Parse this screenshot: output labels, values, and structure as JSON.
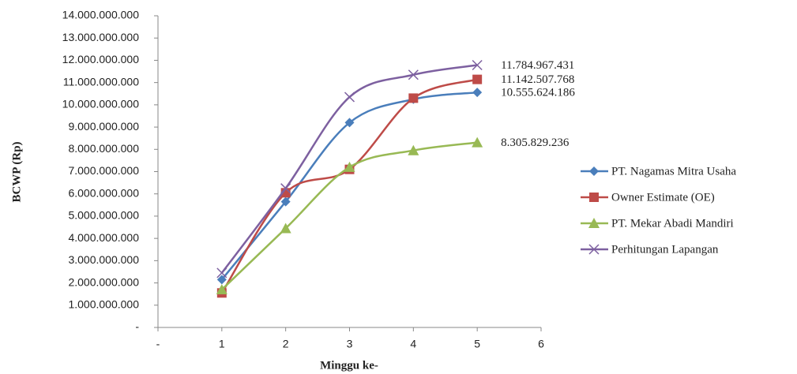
{
  "chart_data": {
    "type": "line",
    "x_label": "Minggu ke-",
    "y_label": "BCWP (Rp)",
    "x": [
      1,
      2,
      3,
      4,
      5
    ],
    "xlim": [
      0,
      6
    ],
    "xticks": [
      {
        "value": 0,
        "label": "-"
      },
      1,
      2,
      3,
      4,
      5,
      6
    ],
    "ylim": [
      0,
      14000000000
    ],
    "yticks": [
      {
        "value": 0,
        "label": "-"
      },
      {
        "value": 1000000000,
        "label": "1.000.000.000"
      },
      {
        "value": 2000000000,
        "label": "2.000.000.000"
      },
      {
        "value": 3000000000,
        "label": "3.000.000.000"
      },
      {
        "value": 4000000000,
        "label": "4.000.000.000"
      },
      {
        "value": 5000000000,
        "label": "5.000.000.000"
      },
      {
        "value": 6000000000,
        "label": "6.000.000.000"
      },
      {
        "value": 7000000000,
        "label": "7.000.000.000"
      },
      {
        "value": 8000000000,
        "label": "8.000.000.000"
      },
      {
        "value": 9000000000,
        "label": "9.000.000.000"
      },
      {
        "value": 10000000000,
        "label": "10.000.000.000"
      },
      {
        "value": 11000000000,
        "label": "11.000.000.000"
      },
      {
        "value": 12000000000,
        "label": "12.000.000.000"
      },
      {
        "value": 13000000000,
        "label": "13.000.000.000"
      },
      {
        "value": 14000000000,
        "label": "14.000.000.000"
      }
    ],
    "legend_position": "right",
    "series": [
      {
        "name": "PT. Nagamas Mitra Usaha",
        "color": "#4a7ebb",
        "marker": "diamond",
        "values": [
          2150000000,
          5650000000,
          9200000000,
          10250000000,
          10555624186
        ],
        "value_labels": [
          null,
          null,
          null,
          null,
          "10.555.624.186"
        ]
      },
      {
        "name": "Owner Estimate (OE)",
        "color": "#be4b48",
        "marker": "square",
        "values": [
          1550000000,
          6050000000,
          7100000000,
          10300000000,
          11142507768
        ],
        "value_labels": [
          null,
          null,
          null,
          null,
          "11.142.507.768"
        ]
      },
      {
        "name": "PT. Mekar Abadi Mandiri",
        "color": "#98b954",
        "marker": "triangle",
        "values": [
          1700000000,
          4450000000,
          7200000000,
          7950000000,
          8305829236
        ],
        "value_labels": [
          null,
          null,
          null,
          null,
          "8.305.829.236"
        ]
      },
      {
        "name": "Perhitungan Lapangan",
        "color": "#7d60a0",
        "marker": "x",
        "values": [
          2450000000,
          6250000000,
          10350000000,
          11350000000,
          11784967431
        ],
        "value_labels": [
          null,
          null,
          null,
          null,
          "11.784.967.431"
        ]
      }
    ]
  }
}
